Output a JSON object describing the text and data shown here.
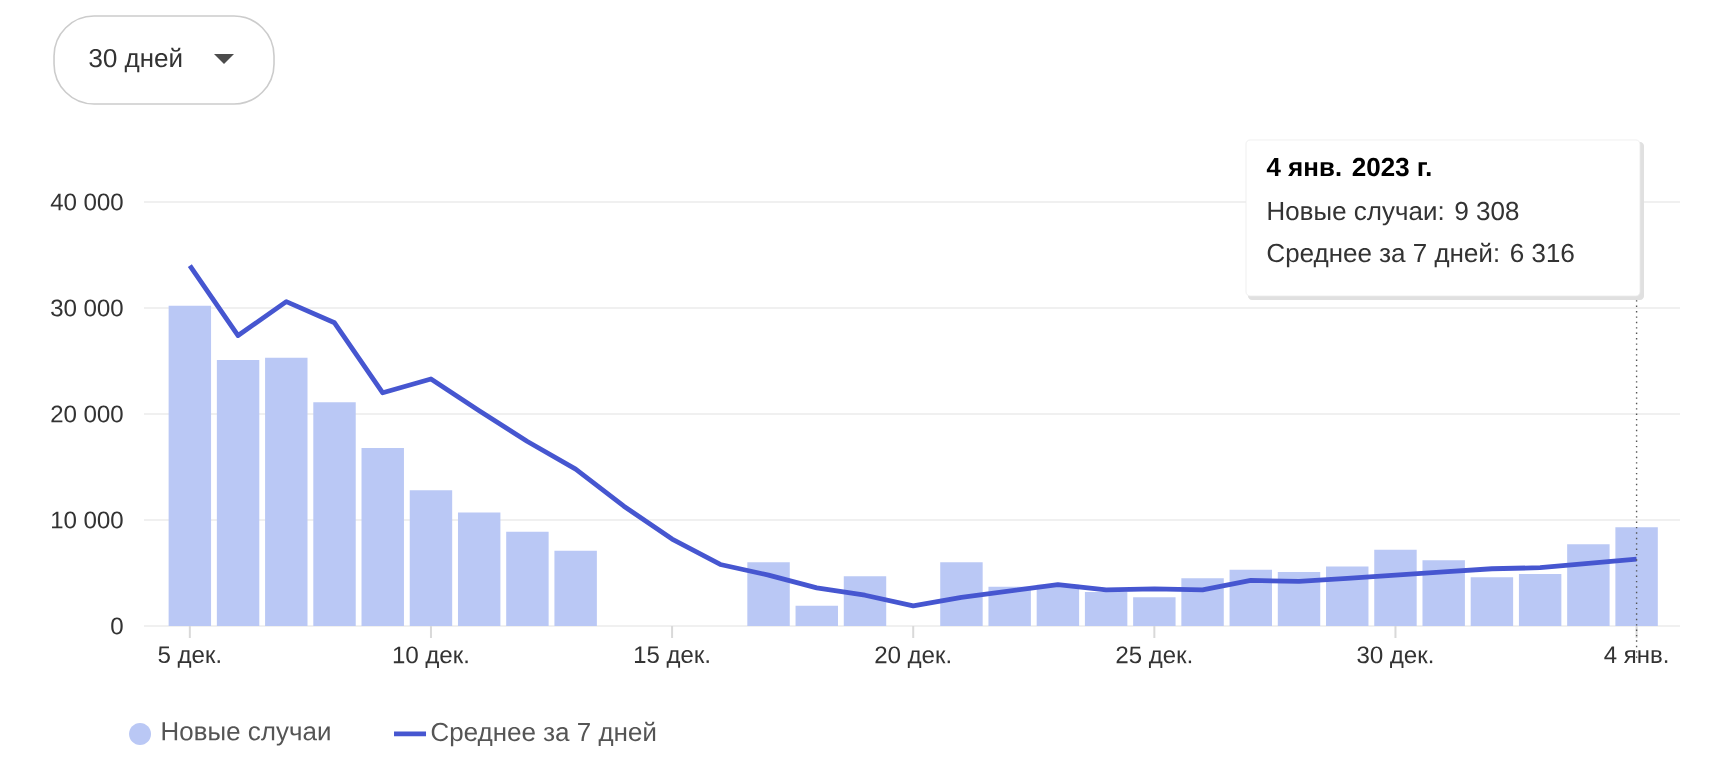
{
  "chart_data": {
    "type": "bar",
    "categories": [
      "5 дек.",
      null,
      null,
      null,
      null,
      "10 дек.",
      null,
      null,
      null,
      null,
      "15 дек.",
      null,
      null,
      null,
      null,
      "20 дек.",
      null,
      null,
      null,
      null,
      "25 дек.",
      null,
      null,
      null,
      null,
      "30 дек.",
      null,
      null,
      null,
      null,
      "4 янв."
    ],
    "series": [
      {
        "name": "Новые случаи",
        "color": "#bac8f5",
        "values": [
          30200,
          25100,
          25300,
          21100,
          16800,
          12800,
          10700,
          8900,
          7100,
          null,
          null,
          null,
          6000,
          1900,
          4700,
          null,
          6000,
          3700,
          3900,
          3200,
          2700,
          4500,
          5300,
          5100,
          5600,
          7200,
          6200,
          4600,
          4900,
          7700,
          9308
        ]
      },
      {
        "name": "Среднее за 7 дней",
        "type": "line",
        "color": "#4656d0",
        "values": [
          34000,
          27400,
          30600,
          28600,
          22000,
          23300,
          20300,
          17400,
          14800,
          11300,
          8200,
          5800,
          4800,
          3600,
          2900,
          1900,
          2700,
          3300,
          3900,
          3400,
          3500,
          3400,
          4300,
          4200,
          4500,
          4800,
          5100,
          5400,
          5500,
          5900,
          6316
        ]
      }
    ],
    "ylim": [
      0,
      40000
    ],
    "yticks": [
      0,
      {
        "value": 10000,
        "label": "10 000"
      },
      {
        "value": 20000,
        "label": "20 000"
      },
      {
        "value": 30000,
        "label": "30 000"
      },
      {
        "value": 40000,
        "label": "40 000"
      }
    ],
    "grid": "y",
    "legend": "bottom",
    "ref_lines": [
      {
        "axis": "x",
        "value": "4 янв.",
        "line_style": "dotted",
        "color": "#555555"
      }
    ],
    "annotations": [
      "30 дней",
      "4 янв. 2023 г.",
      "Новые случаи: 9 308",
      "Среднее за 7 дней: 6 316"
    ]
  }
}
